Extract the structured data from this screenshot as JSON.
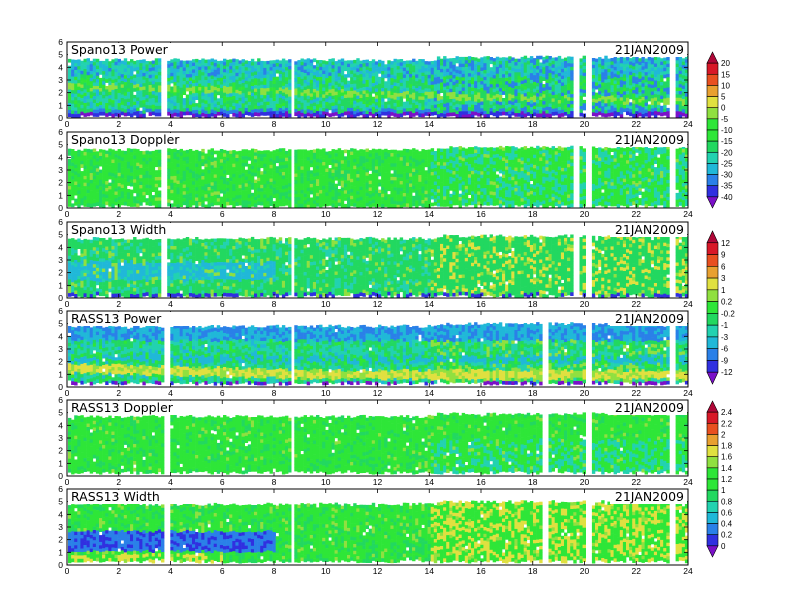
{
  "chart_data": {
    "type": "heatmap",
    "x_ticks": [
      "0",
      "2",
      "4",
      "6",
      "8",
      "10",
      "12",
      "14",
      "16",
      "18",
      "20",
      "22",
      "24"
    ],
    "x_range": [
      0,
      24
    ],
    "y_ticks": [
      "0",
      "1",
      "2",
      "3",
      "4",
      "5",
      "6"
    ],
    "y_range": [
      0,
      6
    ],
    "panels": [
      {
        "title": "Spano13 Power",
        "date": "21JAN2009",
        "colorbar": 0,
        "top_height": 4.6,
        "variant": "spano-power"
      },
      {
        "title": "Spano13 Doppler",
        "date": "21JAN2009",
        "colorbar": 0,
        "top_height": 4.6,
        "variant": "spano-doppler"
      },
      {
        "title": "Spano13 Width",
        "date": "21JAN2009",
        "colorbar": 1,
        "top_height": 4.7,
        "variant": "spano-width"
      },
      {
        "title": "RASS13 Power",
        "date": "21JAN2009",
        "colorbar": 1,
        "top_height": 4.8,
        "variant": "rass-power"
      },
      {
        "title": "RASS13 Doppler",
        "date": "21JAN2009",
        "colorbar": 2,
        "top_height": 4.7,
        "variant": "rass-doppler"
      },
      {
        "title": "RASS13 Width",
        "date": "21JAN2009",
        "colorbar": 2,
        "top_height": 4.8,
        "variant": "rass-width"
      }
    ],
    "colorbars": [
      {
        "labels": [
          "20",
          "15",
          "10",
          "5",
          "0",
          "-5",
          "-10",
          "-15",
          "-20",
          "-25",
          "-30",
          "-35",
          "-40"
        ]
      },
      {
        "labels": [
          "12",
          "9",
          "6",
          "3",
          "1",
          "0.2",
          "-0.2",
          "-1",
          "-3",
          "-6",
          "-9",
          "-12"
        ]
      },
      {
        "labels": [
          "2.4",
          "2.2",
          "2",
          "1.8",
          "1.6",
          "1.4",
          "1.2",
          "1",
          "0.8",
          "0.6",
          "0.4",
          "0.2",
          "0"
        ]
      }
    ],
    "palette": [
      "#7a10c8",
      "#3030e0",
      "#2a80e8",
      "#20b8d8",
      "#22d2b0",
      "#22d860",
      "#2ee638",
      "#90e040",
      "#e0e040",
      "#e8a030",
      "#e85020",
      "#d81828",
      "#b00838"
    ]
  }
}
